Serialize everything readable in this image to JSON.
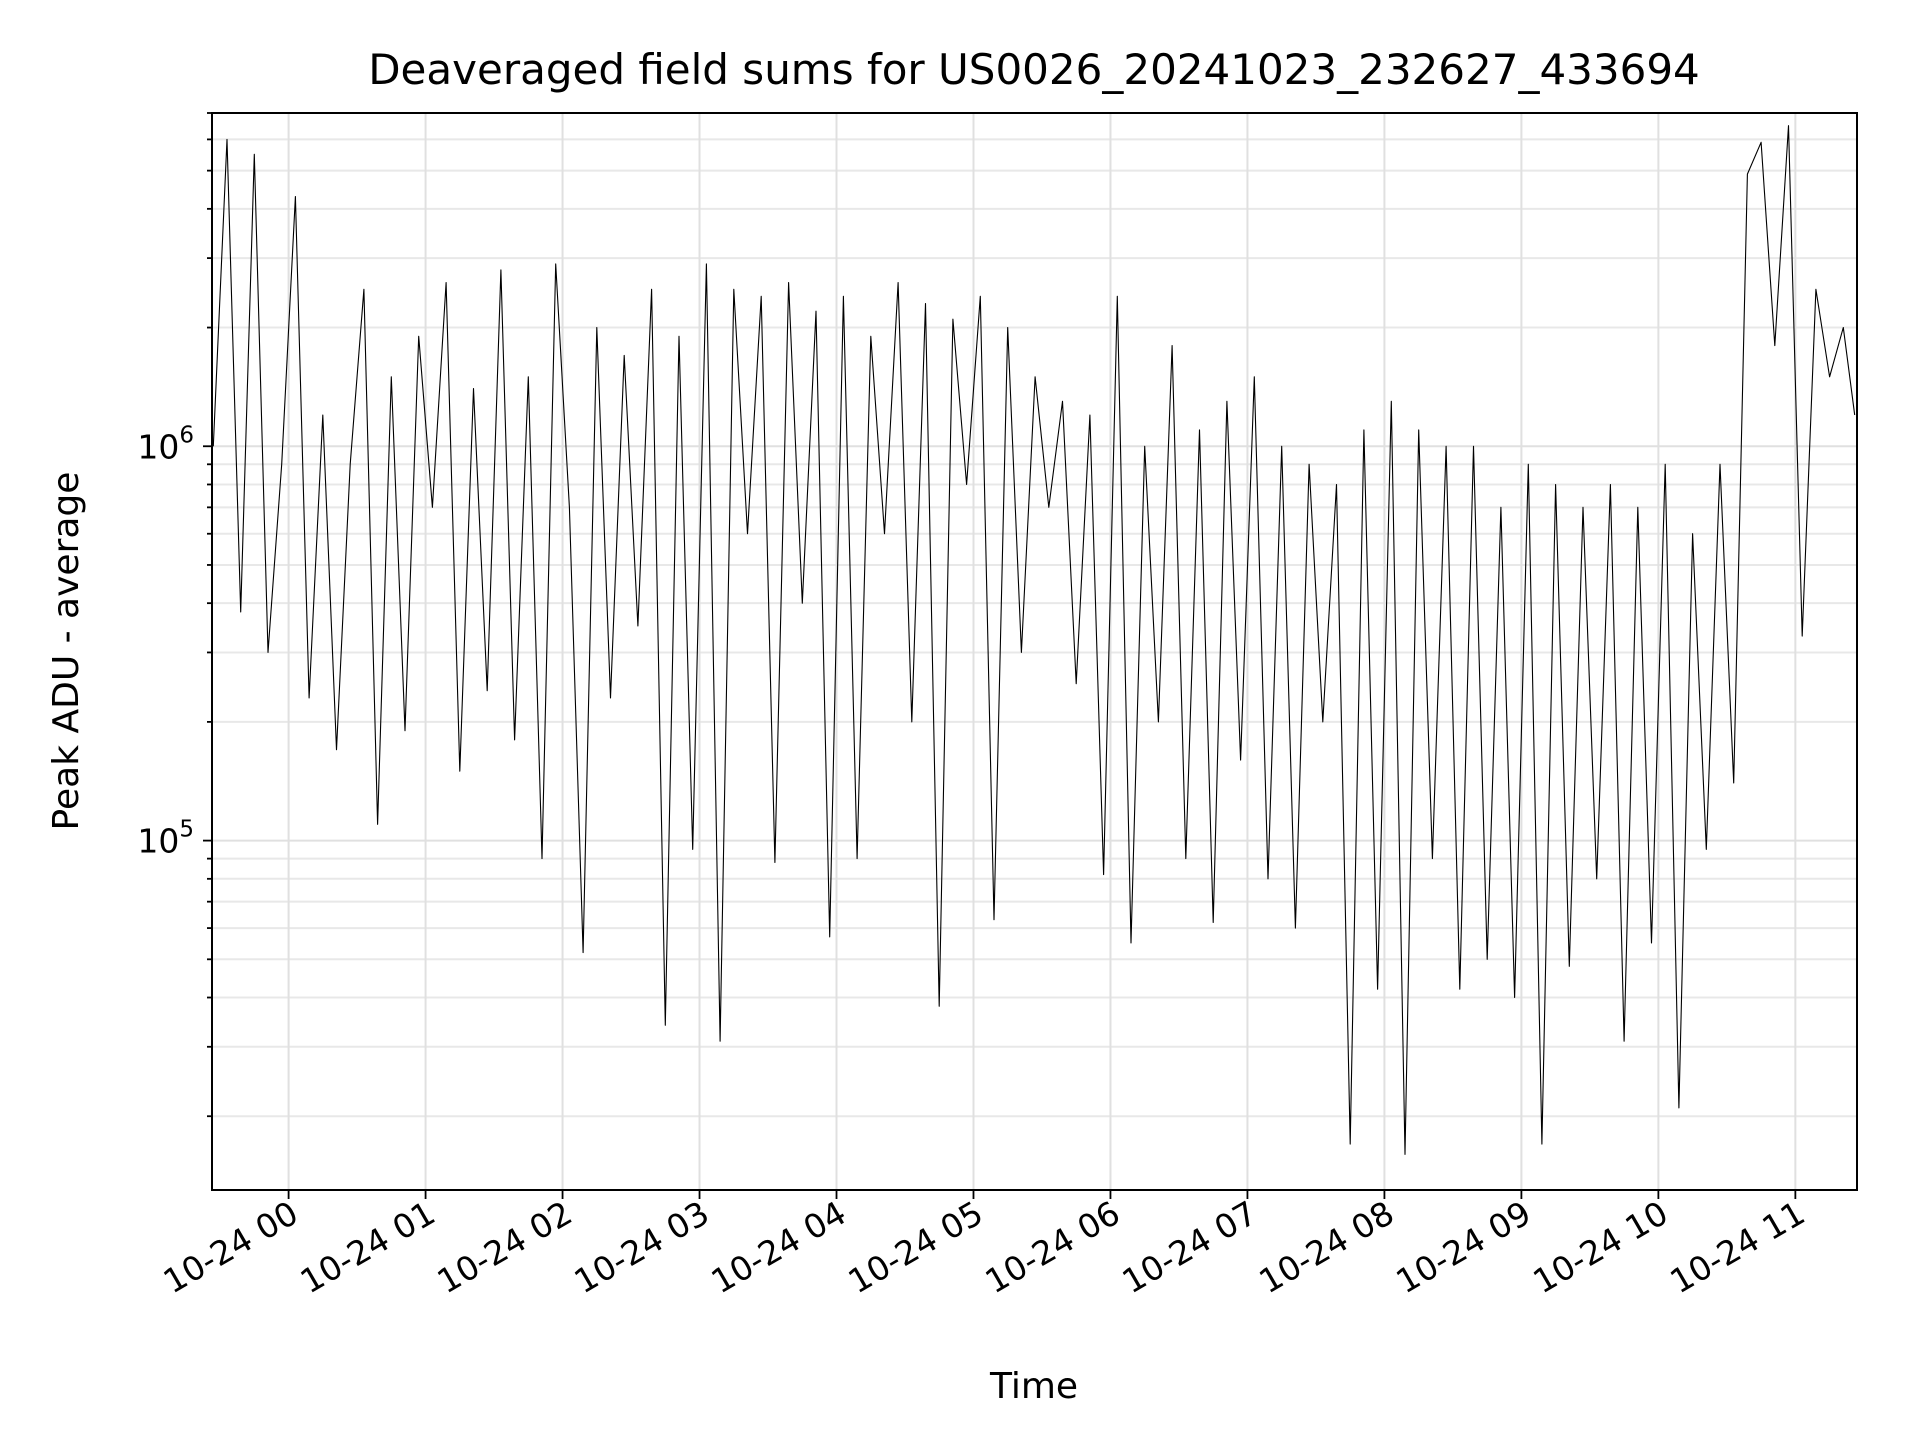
{
  "chart_data": {
    "type": "line",
    "title": "Deaveraged field sums for US0026_20241023_232627_433694",
    "xlabel": "Time",
    "ylabel": "Peak ADU - average",
    "y_scale": "log",
    "ylim": [
      13000,
      7000000
    ],
    "xlim": [
      "2024-10-23 23:26:27",
      "2024-10-24 11:27:00"
    ],
    "grid": true,
    "x_ticks": [
      {
        "value": "2024-10-24 00:00",
        "label": "10-24 00"
      },
      {
        "value": "2024-10-24 01:00",
        "label": "10-24 01"
      },
      {
        "value": "2024-10-24 02:00",
        "label": "10-24 02"
      },
      {
        "value": "2024-10-24 03:00",
        "label": "10-24 03"
      },
      {
        "value": "2024-10-24 04:00",
        "label": "10-24 04"
      },
      {
        "value": "2024-10-24 05:00",
        "label": "10-24 05"
      },
      {
        "value": "2024-10-24 06:00",
        "label": "10-24 06"
      },
      {
        "value": "2024-10-24 07:00",
        "label": "10-24 07"
      },
      {
        "value": "2024-10-24 08:00",
        "label": "10-24 08"
      },
      {
        "value": "2024-10-24 09:00",
        "label": "10-24 09"
      },
      {
        "value": "2024-10-24 10:00",
        "label": "10-24 10"
      },
      {
        "value": "2024-10-24 11:00",
        "label": "10-24 11"
      }
    ],
    "y_ticks": [
      {
        "value": 100000,
        "base": "10",
        "exp": "5"
      },
      {
        "value": 1000000,
        "base": "10",
        "exp": "6"
      }
    ],
    "series": [
      {
        "color": "#000000",
        "x": [
          "2024-10-23 23:27",
          "2024-10-23 23:33",
          "2024-10-23 23:39",
          "2024-10-23 23:45",
          "2024-10-23 23:51",
          "2024-10-23 23:57",
          "2024-10-24 00:03",
          "2024-10-24 00:09",
          "2024-10-24 00:15",
          "2024-10-24 00:21",
          "2024-10-24 00:27",
          "2024-10-24 00:33",
          "2024-10-24 00:39",
          "2024-10-24 00:45",
          "2024-10-24 00:51",
          "2024-10-24 00:57",
          "2024-10-24 01:03",
          "2024-10-24 01:09",
          "2024-10-24 01:15",
          "2024-10-24 01:21",
          "2024-10-24 01:27",
          "2024-10-24 01:33",
          "2024-10-24 01:39",
          "2024-10-24 01:45",
          "2024-10-24 01:51",
          "2024-10-24 01:57",
          "2024-10-24 02:03",
          "2024-10-24 02:09",
          "2024-10-24 02:15",
          "2024-10-24 02:21",
          "2024-10-24 02:27",
          "2024-10-24 02:33",
          "2024-10-24 02:39",
          "2024-10-24 02:45",
          "2024-10-24 02:51",
          "2024-10-24 02:57",
          "2024-10-24 03:03",
          "2024-10-24 03:09",
          "2024-10-24 03:15",
          "2024-10-24 03:21",
          "2024-10-24 03:27",
          "2024-10-24 03:33",
          "2024-10-24 03:39",
          "2024-10-24 03:45",
          "2024-10-24 03:51",
          "2024-10-24 03:57",
          "2024-10-24 04:03",
          "2024-10-24 04:09",
          "2024-10-24 04:15",
          "2024-10-24 04:21",
          "2024-10-24 04:27",
          "2024-10-24 04:33",
          "2024-10-24 04:39",
          "2024-10-24 04:45",
          "2024-10-24 04:51",
          "2024-10-24 04:57",
          "2024-10-24 05:03",
          "2024-10-24 05:09",
          "2024-10-24 05:15",
          "2024-10-24 05:21",
          "2024-10-24 05:27",
          "2024-10-24 05:33",
          "2024-10-24 05:39",
          "2024-10-24 05:45",
          "2024-10-24 05:51",
          "2024-10-24 05:57",
          "2024-10-24 06:03",
          "2024-10-24 06:09",
          "2024-10-24 06:15",
          "2024-10-24 06:21",
          "2024-10-24 06:27",
          "2024-10-24 06:33",
          "2024-10-24 06:39",
          "2024-10-24 06:45",
          "2024-10-24 06:51",
          "2024-10-24 06:57",
          "2024-10-24 07:03",
          "2024-10-24 07:09",
          "2024-10-24 07:15",
          "2024-10-24 07:21",
          "2024-10-24 07:27",
          "2024-10-24 07:33",
          "2024-10-24 07:39",
          "2024-10-24 07:45",
          "2024-10-24 07:51",
          "2024-10-24 07:57",
          "2024-10-24 08:03",
          "2024-10-24 08:09",
          "2024-10-24 08:15",
          "2024-10-24 08:21",
          "2024-10-24 08:27",
          "2024-10-24 08:33",
          "2024-10-24 08:39",
          "2024-10-24 08:45",
          "2024-10-24 08:51",
          "2024-10-24 08:57",
          "2024-10-24 09:03",
          "2024-10-24 09:09",
          "2024-10-24 09:15",
          "2024-10-24 09:21",
          "2024-10-24 09:27",
          "2024-10-24 09:33",
          "2024-10-24 09:39",
          "2024-10-24 09:45",
          "2024-10-24 09:51",
          "2024-10-24 09:57",
          "2024-10-24 10:03",
          "2024-10-24 10:09",
          "2024-10-24 10:15",
          "2024-10-24 10:21",
          "2024-10-24 10:27",
          "2024-10-24 10:33",
          "2024-10-24 10:39",
          "2024-10-24 10:45",
          "2024-10-24 10:51",
          "2024-10-24 10:57",
          "2024-10-24 11:03",
          "2024-10-24 11:09",
          "2024-10-24 11:15",
          "2024-10-24 11:21",
          "2024-10-24 11:26"
        ],
        "y": [
          1000000,
          6000000,
          380000,
          5500000,
          300000,
          900000,
          4300000,
          230000,
          1200000,
          170000,
          900000,
          2500000,
          110000,
          1500000,
          190000,
          1900000,
          700000,
          2600000,
          150000,
          1400000,
          240000,
          2800000,
          180000,
          1500000,
          90000,
          2900000,
          700000,
          52000,
          2000000,
          230000,
          1700000,
          350000,
          2500000,
          34000,
          1900000,
          95000,
          2900000,
          31000,
          2500000,
          600000,
          2400000,
          88000,
          2600000,
          400000,
          2200000,
          57000,
          2400000,
          90000,
          1900000,
          600000,
          2600000,
          200000,
          2300000,
          38000,
          2100000,
          800000,
          2400000,
          63000,
          2000000,
          300000,
          1500000,
          700000,
          1300000,
          250000,
          1200000,
          82000,
          2400000,
          55000,
          1000000,
          200000,
          1800000,
          90000,
          1100000,
          62000,
          1300000,
          160000,
          1500000,
          80000,
          1000000,
          60000,
          900000,
          200000,
          800000,
          17000,
          1100000,
          42000,
          1300000,
          16000,
          1100000,
          90000,
          1000000,
          42000,
          1000000,
          50000,
          700000,
          40000,
          900000,
          17000,
          800000,
          48000,
          700000,
          80000,
          800000,
          31000,
          700000,
          55000,
          900000,
          21000,
          600000,
          95000,
          900000,
          140000,
          4900000,
          5900000,
          1800000,
          6500000,
          330000,
          2500000,
          1500000,
          2000000,
          1200000
        ]
      }
    ]
  }
}
